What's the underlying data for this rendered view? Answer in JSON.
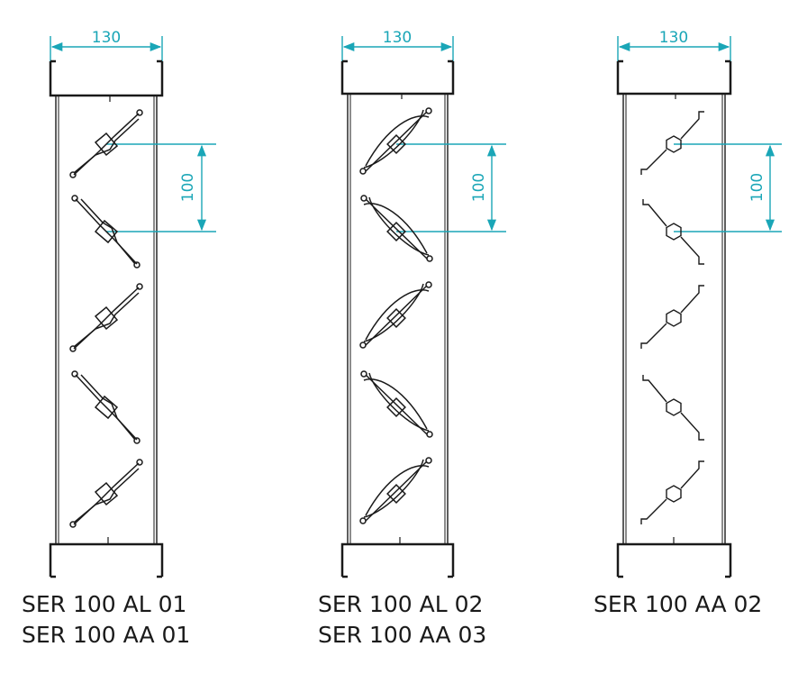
{
  "accent_color": "#1aa6b7",
  "line_color": "#1a1a1a",
  "panels": [
    {
      "width_label": "130",
      "pitch_label": "100",
      "blade_style": "aluminium-profile-single",
      "captions": [
        "SER 100 AL 01",
        "SER 100 AA 01"
      ]
    },
    {
      "width_label": "130",
      "pitch_label": "100",
      "blade_style": "aluminium-profile-double",
      "captions": [
        "SER 100 AL 02",
        "SER 100 AA 03"
      ]
    },
    {
      "width_label": "130",
      "pitch_label": "100",
      "blade_style": "steel-z-blade-hex-axle",
      "captions": [
        "SER 100 AA 02"
      ]
    }
  ]
}
